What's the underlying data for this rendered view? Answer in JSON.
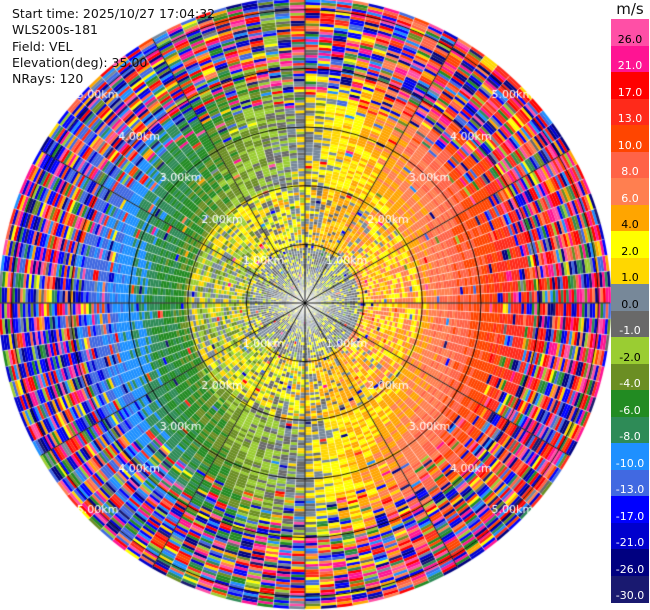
{
  "header": {
    "start_time": "Start time: 2025/10/27 17:04:32",
    "instrument": "WLS200s-181",
    "field": "Field: VEL",
    "elevation": "Elevation(deg): 35.00",
    "nrays": "NRays: 120"
  },
  "colorbar": {
    "unit": "m/s",
    "labels": [
      "26.0",
      "21.0",
      "17.0",
      "13.0",
      "10.0",
      "8.0",
      "6.0",
      "4.0",
      "2.0",
      "1.0",
      "0.0",
      "-1.0",
      "-2.0",
      "-4.0",
      "-6.0",
      "-8.0",
      "-10.0",
      "-13.0",
      "-17.0",
      "-21.0",
      "-26.0",
      "-30.0"
    ],
    "colors": [
      "#ff4fa6",
      "#ff1493",
      "#ff0000",
      "#ff2a1a",
      "#ff4500",
      "#ff6347",
      "#ff7f50",
      "#ffa500",
      "#ffff00",
      "#ffd700",
      "#778899",
      "#696969",
      "#9acd32",
      "#6b8e23",
      "#228b22",
      "#2e8b57",
      "#1e90ff",
      "#4169e1",
      "#0000ff",
      "#0000cd",
      "#000080",
      "#191970"
    ],
    "text_colors": [
      "#000",
      "#fff",
      "#fff",
      "#fff",
      "#fff",
      "#fff",
      "#fff",
      "#000",
      "#000",
      "#000",
      "#000",
      "#fff",
      "#000",
      "#fff",
      "#fff",
      "#fff",
      "#fff",
      "#fff",
      "#fff",
      "#fff",
      "#fff",
      "#fff"
    ]
  },
  "chart_data": {
    "type": "heatmap",
    "projection": "polar-ppi",
    "nrays": 120,
    "max_range_km": 5.2,
    "range_rings_km": [
      1.0,
      2.0,
      3.0,
      4.0,
      5.0
    ],
    "ring_labels": [
      "1.00km",
      "2.00km",
      "3.00km",
      "4.00km",
      "5.00km"
    ],
    "velocity_range_ms": [
      -30.0,
      26.0
    ],
    "radial_lines_deg": [
      0,
      30,
      60,
      90,
      120,
      150,
      180,
      210,
      240,
      270,
      300,
      330
    ],
    "qualitative_pattern": {
      "center_0_to_1km": "gray / yellow-green, ~0 to 2 m/s",
      "ring_1_to_2km": "yellow and gray, 0 to 4 m/s",
      "west_2_to_4km": "green to blue, -4 to -10 m/s",
      "east_2_to_4km": "orange to red, 6 to 13 m/s",
      "beyond_4km": "noise, all colors"
    }
  }
}
